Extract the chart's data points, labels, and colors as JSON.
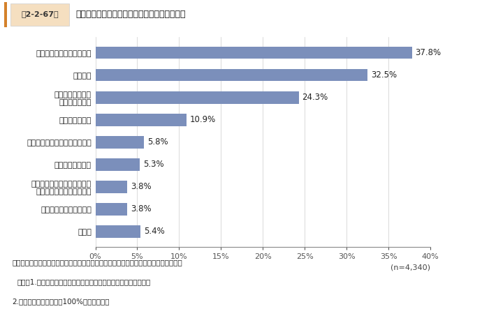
{
  "title_box_label": "第2-2-67図",
  "title_main": "経営理念・ビジョンを策定した動機・きっかけ",
  "categories": [
    "事業の継承・経営者の交代",
    "会社創業",
    "企業規模の拡大・\n事業内容の変化",
    "外部環境の変化",
    "支援機関などからの指導・助言",
    "従業員からの意見",
    "リーマン・ショックや震災、\n感染症拡大などによる危機",
    "顧客や取引先からの指摘",
    "その他"
  ],
  "values": [
    37.8,
    32.5,
    24.3,
    10.9,
    5.8,
    5.3,
    3.8,
    3.8,
    5.4
  ],
  "bar_color": "#7b8fbb",
  "xlim": [
    0,
    40
  ],
  "xticks": [
    0,
    5,
    10,
    15,
    20,
    25,
    30,
    35,
    40
  ],
  "xtick_labels": [
    "0%",
    "5%",
    "10%",
    "15%",
    "20%",
    "25%",
    "30%",
    "35%",
    "40%"
  ],
  "n_label": "(n=4,340)",
  "footnote_line1": "資料：（株）東京商工リサーチ「中小企業の経営理念・経営戦略に関するアンケート」",
  "footnote_line2": "（注）1.経営理念・ビジョンを明文化している企業に聞いたもの。",
  "footnote_line3": "2.複数回答のため合計が100%とならない。",
  "background_color": "#ffffff",
  "header_bg_color": "#eeeeee",
  "title_box_bg_color": "#f5dfc0",
  "title_bar_color": "#d4812a",
  "bar_label_fontsize": 8.5,
  "category_fontsize": 8,
  "tick_fontsize": 8,
  "footnote_fontsize": 7.5
}
